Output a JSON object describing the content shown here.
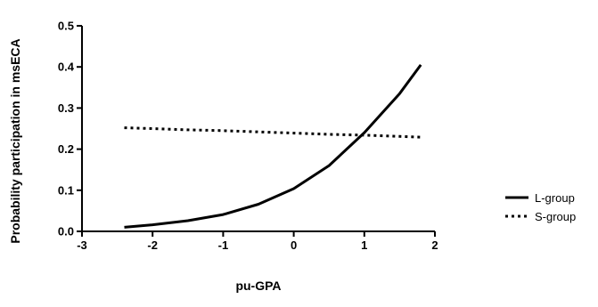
{
  "chart_data": {
    "type": "line",
    "xlabel": "pu-GPA",
    "ylabel": "Probability participation in msECA",
    "xlim": [
      -3,
      2
    ],
    "ylim": [
      0.0,
      0.5
    ],
    "x_ticks": [
      "-3",
      "-2",
      "-1",
      "0",
      "1",
      "2"
    ],
    "y_ticks": [
      "0.0",
      "0.1",
      "0.2",
      "0.3",
      "0.4",
      "0.5"
    ],
    "grid": false,
    "legend_position": "right",
    "series": [
      {
        "name": "L-group",
        "style": "solid",
        "color": "#000000",
        "x": [
          -2.4,
          -2.0,
          -1.5,
          -1.0,
          -0.5,
          0.0,
          0.5,
          1.0,
          1.5,
          1.8
        ],
        "y": [
          0.01,
          0.016,
          0.026,
          0.041,
          0.066,
          0.104,
          0.16,
          0.24,
          0.335,
          0.405
        ]
      },
      {
        "name": "S-group",
        "style": "dotted",
        "color": "#000000",
        "x": [
          -2.4,
          -2.0,
          -1.5,
          -1.0,
          -0.5,
          0.0,
          0.5,
          1.0,
          1.5,
          1.8
        ],
        "y": [
          0.252,
          0.25,
          0.247,
          0.245,
          0.242,
          0.239,
          0.236,
          0.234,
          0.231,
          0.229
        ]
      }
    ]
  }
}
